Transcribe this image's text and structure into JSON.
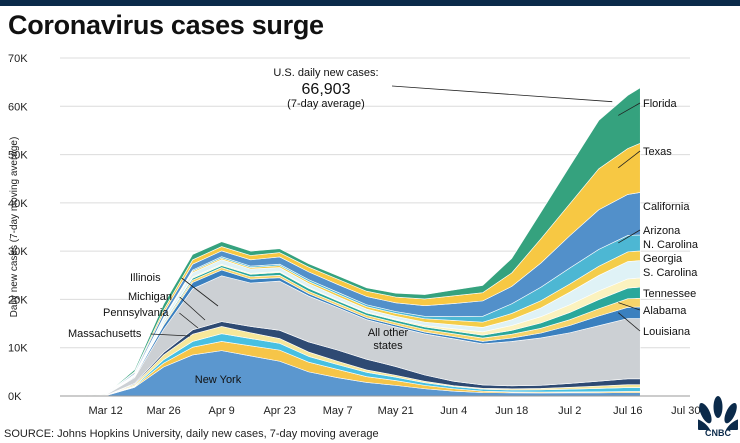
{
  "title": "Coronavirus cases surge",
  "source": "SOURCE: Johns Hopkins University, daily new cases, 7-day moving average",
  "logo_text": "CNBC",
  "annotation": {
    "label": "U.S. daily new cases:",
    "value": "66,903",
    "note": "(7-day average)"
  },
  "chart_data": {
    "type": "area",
    "stacked": true,
    "ylabel": "Daily new cases (7-day moving average)",
    "xlabel": "",
    "ylim": [
      0,
      70000
    ],
    "yticks": [
      0,
      10000,
      20000,
      30000,
      40000,
      50000,
      60000,
      70000
    ],
    "ytick_labels": [
      "0K",
      "10K",
      "20K",
      "30K",
      "40K",
      "50K",
      "60K",
      "70K"
    ],
    "xlim": [
      "2020-03-01",
      "2020-07-31"
    ],
    "xticks": [
      "2020-03-12",
      "2020-03-26",
      "2020-04-09",
      "2020-04-23",
      "2020-05-07",
      "2020-05-21",
      "2020-06-04",
      "2020-06-18",
      "2020-07-02",
      "2020-07-16",
      "2020-07-30"
    ],
    "xtick_labels": [
      "Mar 12",
      "Mar 26",
      "Apr 9",
      "Apr 23",
      "May 7",
      "May 21",
      "Jun 4",
      "Jun 18",
      "Jul 2",
      "Jul 16",
      "Jul 30"
    ],
    "x": [
      "2020-03-05",
      "2020-03-12",
      "2020-03-19",
      "2020-03-26",
      "2020-04-02",
      "2020-04-09",
      "2020-04-16",
      "2020-04-23",
      "2020-04-30",
      "2020-05-07",
      "2020-05-14",
      "2020-05-21",
      "2020-05-28",
      "2020-06-04",
      "2020-06-11",
      "2020-06-18",
      "2020-06-25",
      "2020-07-02",
      "2020-07-09",
      "2020-07-16",
      "2020-07-19"
    ],
    "series": [
      {
        "name": "New York",
        "color": "#5b97cf",
        "values": [
          0,
          50,
          1800,
          6000,
          8500,
          9400,
          8300,
          7200,
          5000,
          3800,
          2800,
          2200,
          1500,
          1000,
          700,
          650,
          620,
          650,
          650,
          700,
          700
        ]
      },
      {
        "name": "Massachusetts",
        "color": "#f6c548",
        "values": [
          0,
          10,
          150,
          800,
          1600,
          1900,
          2100,
          2300,
          2000,
          1700,
          1200,
          1000,
          700,
          500,
          300,
          200,
          200,
          200,
          220,
          250,
          250
        ]
      },
      {
        "name": "Pennsylvania",
        "color": "#48c0e2",
        "values": [
          0,
          10,
          150,
          700,
          1200,
          1600,
          1500,
          1400,
          1200,
          1000,
          900,
          700,
          550,
          450,
          400,
          400,
          450,
          550,
          700,
          800,
          800
        ]
      },
      {
        "name": "Michigan",
        "color": "#f6e79a",
        "values": [
          0,
          10,
          300,
          1000,
          1500,
          1500,
          1200,
          1000,
          900,
          700,
          500,
          400,
          300,
          200,
          200,
          250,
          300,
          400,
          500,
          600,
          600
        ]
      },
      {
        "name": "Illinois",
        "color": "#2e4a73",
        "values": [
          0,
          10,
          200,
          500,
          900,
          1000,
          1300,
          1700,
          2100,
          2300,
          2200,
          1800,
          1300,
          900,
          700,
          600,
          650,
          800,
          1000,
          1200,
          1200
        ]
      },
      {
        "name": "All other states",
        "color": "#ccd0d4",
        "values": [
          0,
          100,
          1200,
          4800,
          8500,
          9500,
          9000,
          10200,
          9500,
          8800,
          8200,
          8200,
          8500,
          8800,
          8500,
          9200,
          9800,
          10500,
          11500,
          12500,
          12500
        ]
      },
      {
        "name": "Louisiana",
        "color": "#3a80bf",
        "values": [
          0,
          10,
          200,
          800,
          1300,
          1200,
          800,
          700,
          500,
          400,
          400,
          400,
          400,
          450,
          500,
          700,
          1000,
          1500,
          2000,
          2300,
          2400
        ]
      },
      {
        "name": "Alabama",
        "color": "#f7d46a",
        "values": [
          0,
          10,
          100,
          300,
          500,
          500,
          500,
          500,
          500,
          500,
          500,
          500,
          550,
          600,
          700,
          800,
          1000,
          1200,
          1500,
          1800,
          1800
        ]
      },
      {
        "name": "Tennessee",
        "color": "#2aa79b",
        "values": [
          0,
          10,
          100,
          300,
          400,
          400,
          500,
          600,
          600,
          500,
          500,
          500,
          500,
          550,
          600,
          800,
          1100,
          1500,
          1900,
          2200,
          2300
        ]
      },
      {
        "name": "S. Carolina",
        "color": "#fbf2bf",
        "values": [
          0,
          10,
          50,
          150,
          250,
          250,
          200,
          200,
          200,
          200,
          200,
          200,
          300,
          500,
          700,
          1000,
          1300,
          1600,
          1800,
          1900,
          1900
        ]
      },
      {
        "name": "Georgia",
        "color": "#dff2f6",
        "values": [
          0,
          10,
          200,
          600,
          900,
          1000,
          900,
          800,
          800,
          700,
          600,
          600,
          700,
          800,
          900,
          1200,
          1800,
          2600,
          3200,
          3600,
          3600
        ]
      },
      {
        "name": "N. Carolina",
        "color": "#f4cd4a",
        "values": [
          0,
          10,
          50,
          200,
          300,
          300,
          300,
          400,
          400,
          500,
          500,
          600,
          700,
          900,
          1100,
          1300,
          1500,
          1700,
          1900,
          2000,
          2000
        ]
      },
      {
        "name": "Arizona",
        "color": "#4db7d3",
        "values": [
          0,
          10,
          50,
          150,
          250,
          300,
          300,
          300,
          400,
          400,
          400,
          400,
          500,
          800,
          1200,
          2000,
          2800,
          3300,
          3500,
          3400,
          3300
        ]
      },
      {
        "name": "California",
        "color": "#5290ca",
        "values": [
          0,
          30,
          300,
          900,
          1200,
          1200,
          1300,
          1500,
          1600,
          1600,
          1700,
          1800,
          2200,
          2700,
          3200,
          3600,
          5000,
          6700,
          8200,
          8500,
          8800
        ]
      },
      {
        "name": "Texas",
        "color": "#f7c843",
        "values": [
          0,
          20,
          200,
          600,
          900,
          900,
          900,
          900,
          1000,
          1100,
          1100,
          1200,
          1400,
          1600,
          1700,
          2800,
          5000,
          6600,
          8500,
          9500,
          10200
        ]
      },
      {
        "name": "Florida",
        "color": "#35a27e",
        "values": [
          0,
          30,
          400,
          1200,
          1100,
          1000,
          900,
          800,
          700,
          700,
          700,
          800,
          900,
          1200,
          1500,
          3000,
          5500,
          7800,
          10000,
          11000,
          11500
        ]
      }
    ]
  }
}
